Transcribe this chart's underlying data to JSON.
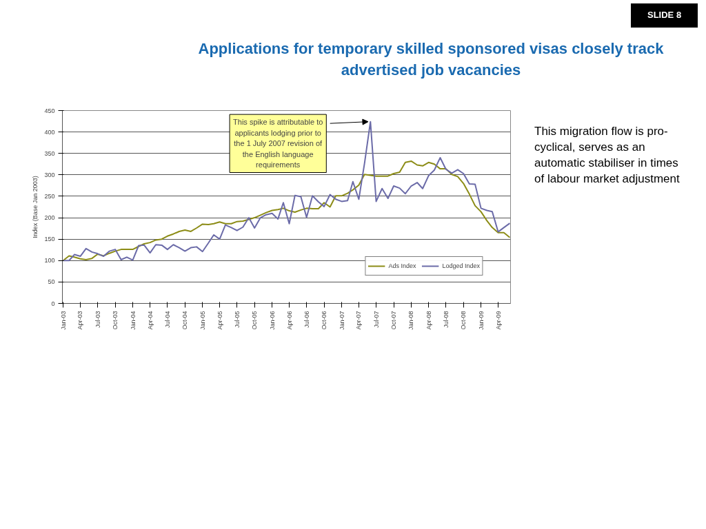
{
  "chart_data": {
    "type": "line",
    "title": "Applications for temporary skilled sponsored visas closely track advertised job vacancies",
    "ylabel": "Index (Base Jan 2003)",
    "x": [
      "2003-01",
      "2003-02",
      "2003-03",
      "2003-04",
      "2003-05",
      "2003-06",
      "2003-07",
      "2003-08",
      "2003-09",
      "2003-10",
      "2003-11",
      "2003-12",
      "2004-01",
      "2004-02",
      "2004-03",
      "2004-04",
      "2004-05",
      "2004-06",
      "2004-07",
      "2004-08",
      "2004-09",
      "2004-10",
      "2004-11",
      "2004-12",
      "2005-01",
      "2005-02",
      "2005-03",
      "2005-04",
      "2005-05",
      "2005-06",
      "2005-07",
      "2005-08",
      "2005-09",
      "2005-10",
      "2005-11",
      "2005-12",
      "2006-01",
      "2006-02",
      "2006-03",
      "2006-04",
      "2006-05",
      "2006-06",
      "2006-07",
      "2006-08",
      "2006-09",
      "2006-10",
      "2006-11",
      "2006-12",
      "2007-01",
      "2007-02",
      "2007-03",
      "2007-04",
      "2007-05",
      "2007-06",
      "2007-07",
      "2007-08",
      "2007-09",
      "2007-10",
      "2007-11",
      "2007-12",
      "2008-01",
      "2008-02",
      "2008-03",
      "2008-04",
      "2008-05",
      "2008-06",
      "2008-07",
      "2008-08",
      "2008-09",
      "2008-10",
      "2008-11",
      "2008-12",
      "2009-01",
      "2009-02",
      "2009-03",
      "2009-04",
      "2009-05",
      "2009-06"
    ],
    "series": [
      {
        "name": "Ads Index",
        "color": "#8c8c16",
        "values": [
          100,
          111,
          108,
          104,
          102,
          105,
          115,
          111,
          117,
          122,
          126,
          126,
          126,
          133,
          139,
          142,
          148,
          150,
          157,
          162,
          168,
          171,
          168,
          176,
          185,
          184,
          186,
          190,
          186,
          186,
          191,
          192,
          196,
          200,
          206,
          212,
          217,
          219,
          222,
          216,
          213,
          218,
          222,
          221,
          221,
          235,
          225,
          251,
          251,
          257,
          265,
          276,
          301,
          299,
          297,
          297,
          297,
          303,
          306,
          329,
          332,
          323,
          321,
          329,
          325,
          314,
          314,
          301,
          296,
          280,
          255,
          228,
          214,
          193,
          177,
          165,
          165,
          154
        ]
      },
      {
        "name": "Lodged Index",
        "color": "#6b6ba8",
        "values": [
          100,
          100,
          114,
          110,
          128,
          120,
          116,
          110,
          122,
          126,
          102,
          108,
          101,
          135,
          136,
          118,
          137,
          136,
          126,
          137,
          130,
          122,
          130,
          132,
          121,
          141,
          160,
          150,
          183,
          177,
          170,
          178,
          200,
          176,
          200,
          207,
          210,
          197,
          235,
          186,
          252,
          249,
          201,
          251,
          237,
          226,
          254,
          243,
          238,
          240,
          284,
          243,
          327,
          424,
          238,
          268,
          245,
          274,
          269,
          256,
          274,
          282,
          268,
          298,
          311,
          340,
          313,
          304,
          312,
          303,
          279,
          278,
          222,
          217,
          214,
          167,
          177,
          187
        ]
      }
    ],
    "xlim": [
      "2003-01",
      "2009-06"
    ],
    "xticks": [
      {
        "value": "2003-01",
        "label": "Jan-03"
      },
      {
        "value": "2003-04",
        "label": "Apr-03"
      },
      {
        "value": "2003-07",
        "label": "Jul-03"
      },
      {
        "value": "2003-10",
        "label": "Oct-03"
      },
      {
        "value": "2004-01",
        "label": "Jan-04"
      },
      {
        "value": "2004-04",
        "label": "Apr-04"
      },
      {
        "value": "2004-07",
        "label": "Jul-04"
      },
      {
        "value": "2004-10",
        "label": "Oct-04"
      },
      {
        "value": "2005-01",
        "label": "Jan-05"
      },
      {
        "value": "2005-04",
        "label": "Apr-05"
      },
      {
        "value": "2005-07",
        "label": "Jul-05"
      },
      {
        "value": "2005-10",
        "label": "Oct-05"
      },
      {
        "value": "2006-01",
        "label": "Jan-06"
      },
      {
        "value": "2006-04",
        "label": "Apr-06"
      },
      {
        "value": "2006-07",
        "label": "Jul-06"
      },
      {
        "value": "2006-10",
        "label": "Oct-06"
      },
      {
        "value": "2007-01",
        "label": "Jan-07"
      },
      {
        "value": "2007-04",
        "label": "Apr-07"
      },
      {
        "value": "2007-07",
        "label": "Jul-07"
      },
      {
        "value": "2007-10",
        "label": "Oct-07"
      },
      {
        "value": "2008-01",
        "label": "Jan-08"
      },
      {
        "value": "2008-04",
        "label": "Apr-08"
      },
      {
        "value": "2008-07",
        "label": "Jul-08"
      },
      {
        "value": "2008-10",
        "label": "Oct-08"
      },
      {
        "value": "2009-01",
        "label": "Jan-09"
      },
      {
        "value": "2009-04",
        "label": "Apr-09"
      }
    ],
    "ylim": [
      0,
      450
    ],
    "yticks": [
      0,
      50,
      100,
      150,
      200,
      250,
      300,
      350,
      400,
      450
    ],
    "grid": "y",
    "legend": "bottom right",
    "line_style": "solid",
    "marker": "none",
    "annotations": [
      "SLIDE 8",
      {
        "text": "This spike is attributable to applicants lodging prior to the 1 July 2007 revision of the English language requirements",
        "x": "2007-06",
        "y": 424
      },
      "This migration flow is pro-cyclical, serves as an automatic stabiliser in times of labour market adjustment"
    ]
  }
}
